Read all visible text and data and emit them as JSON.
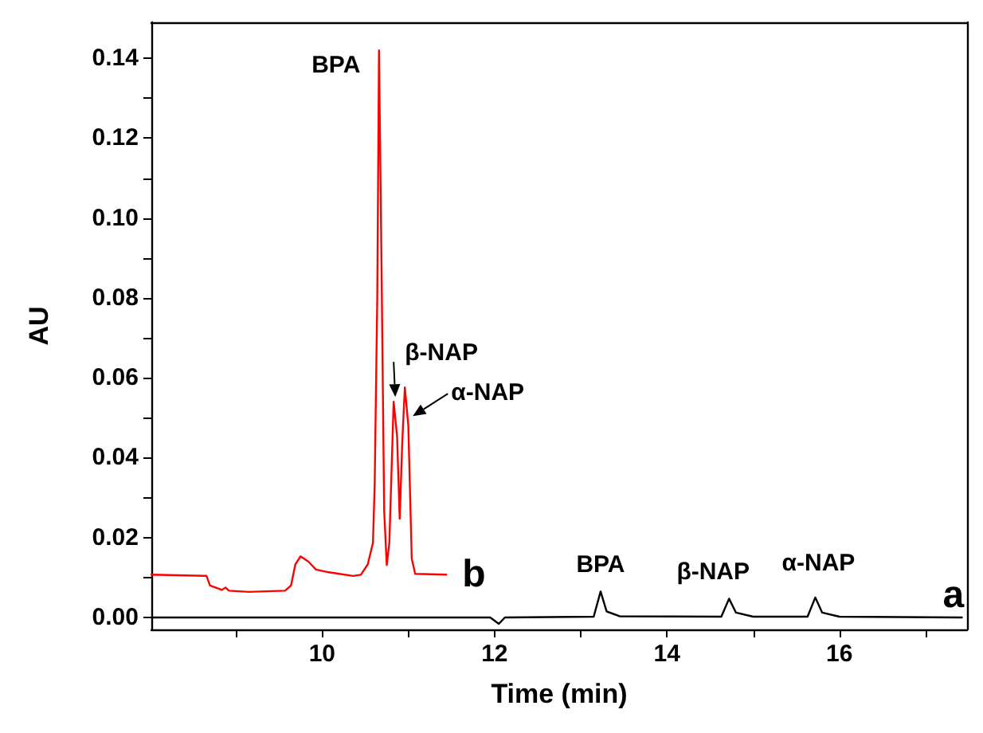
{
  "chart_data": {
    "type": "line",
    "xlabel": "Time (min)",
    "ylabel": "AU",
    "xlim": [
      8.02,
      17.48
    ],
    "ylim": [
      -0.003,
      0.149
    ],
    "xticks": [
      {
        "value": 9,
        "label": null
      },
      10,
      {
        "value": 11,
        "label": null
      },
      12,
      {
        "value": 13,
        "label": null
      },
      14,
      {
        "value": 15,
        "label": null
      },
      16,
      {
        "value": 17,
        "label": null
      }
    ],
    "yticks": [
      {
        "value": 0,
        "label": "0.00"
      },
      {
        "value": 0.01,
        "label": null
      },
      0.02,
      {
        "value": 0.03,
        "label": null
      },
      0.04,
      {
        "value": 0.05,
        "label": null
      },
      0.06,
      {
        "value": 0.07,
        "label": null
      },
      0.08,
      {
        "value": 0.09,
        "label": null
      },
      {
        "value": 0.1,
        "label": "0.10"
      },
      {
        "value": 0.11,
        "label": null
      },
      0.12,
      {
        "value": 0.13,
        "label": null
      },
      0.14
    ],
    "grid": false,
    "legend": false,
    "marker": "none",
    "line_style": "solid",
    "series": [
      {
        "name": "a",
        "color": "#000000",
        "x": [
          8.02,
          11.95,
          12.05,
          12.12,
          13.15,
          13.23,
          13.3,
          13.45,
          14.63,
          14.72,
          14.8,
          15.0,
          15.63,
          15.72,
          15.8,
          16.0,
          17.42
        ],
        "values": [
          0,
          0,
          -0.0016,
          0,
          0.0002,
          0.0065,
          0.0015,
          0.0003,
          0.0002,
          0.0047,
          0.0012,
          0.0002,
          0.0002,
          0.005,
          0.0012,
          0.0002,
          0
        ]
      },
      {
        "name": "b",
        "color": "#ff0000",
        "x": [
          8.02,
          8.66,
          8.7,
          8.84,
          8.88,
          8.92,
          9.15,
          9.57,
          9.64,
          9.69,
          9.75,
          9.84,
          9.93,
          10.08,
          10.36,
          10.45,
          10.53,
          10.59,
          10.61,
          10.64,
          10.66,
          10.69,
          10.72,
          10.75,
          10.78,
          10.83,
          10.87,
          10.9,
          10.93,
          10.96,
          11.0,
          11.04,
          11.08,
          11.44
        ],
        "values": [
          0.0107,
          0.0104,
          0.008,
          0.0069,
          0.0075,
          0.0067,
          0.0064,
          0.0067,
          0.008,
          0.0133,
          0.0153,
          0.014,
          0.012,
          0.0113,
          0.0104,
          0.0107,
          0.0133,
          0.0187,
          0.0333,
          0.08,
          0.142,
          0.0867,
          0.0267,
          0.0131,
          0.0187,
          0.054,
          0.0453,
          0.0247,
          0.044,
          0.0576,
          0.048,
          0.0147,
          0.0109,
          0.0107
        ]
      }
    ],
    "annotations": [
      {
        "text": "BPA",
        "x": 10.66,
        "y": 0.142
      },
      {
        "text": "β-NAP",
        "x": 10.83,
        "y": 0.054
      },
      {
        "text": "α-NAP",
        "x": 10.96,
        "y": 0.0576
      },
      {
        "text": "BPA",
        "x": 13.23,
        "y": 0.0065
      },
      {
        "text": "β-NAP",
        "x": 14.72,
        "y": 0.0047
      },
      {
        "text": "α-NAP",
        "x": 15.72,
        "y": 0.005
      }
    ]
  }
}
